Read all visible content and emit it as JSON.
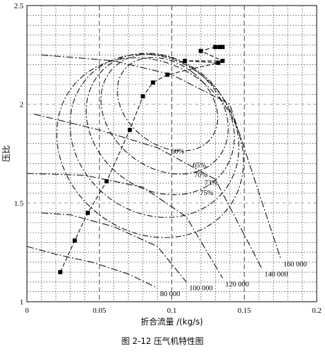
{
  "caption": "图 2-12   压气机特性图",
  "chart_data": {
    "type": "line",
    "xlabel": "折合流量 /(kg/s)",
    "ylabel": "压比",
    "xlim": [
      0,
      0.2
    ],
    "ylim": [
      1,
      2.5
    ],
    "x_ticks": [
      0,
      0.05,
      0.1,
      0.15,
      0.2
    ],
    "x_tick_labels": [
      "0",
      "0.05",
      "0.1",
      "0.15",
      "0.2"
    ],
    "y_ticks": [
      1,
      1.5,
      2,
      2.5
    ],
    "y_tick_labels": [
      "1",
      "1.5",
      "2",
      "2.5"
    ],
    "grid": true,
    "speed_lines": [
      {
        "label": "80 000",
        "x": [
          0.0,
          0.02,
          0.045,
          0.07,
          0.09
        ],
        "y": [
          1.28,
          1.24,
          1.2,
          1.14,
          1.07
        ]
      },
      {
        "label": "100 000",
        "x": [
          0.01,
          0.03,
          0.06,
          0.09,
          0.11
        ],
        "y": [
          1.45,
          1.44,
          1.38,
          1.28,
          1.1
        ]
      },
      {
        "label": "120 000",
        "x": [
          0.0,
          0.04,
          0.08,
          0.11,
          0.135
        ],
        "y": [
          1.65,
          1.64,
          1.58,
          1.43,
          1.12
        ]
      },
      {
        "label": "140 000",
        "x": [
          0.005,
          0.05,
          0.09,
          0.13,
          0.162
        ],
        "y": [
          1.95,
          1.87,
          1.78,
          1.62,
          1.17
        ]
      },
      {
        "label": "160 000",
        "x": [
          0.01,
          0.06,
          0.1,
          0.14,
          0.175
        ],
        "y": [
          2.25,
          2.22,
          2.15,
          2.0,
          1.22
        ]
      }
    ],
    "surge_points": {
      "x": [
        0.023,
        0.033,
        0.042,
        0.055,
        0.071,
        0.08,
        0.087,
        0.097,
        0.109,
        0.12,
        0.13,
        0.132,
        0.135,
        0.133,
        0.135
      ],
      "y": [
        1.15,
        1.31,
        1.45,
        1.61,
        1.87,
        2.04,
        2.11,
        2.15,
        2.22,
        2.27,
        2.29,
        2.21,
        2.22,
        2.29,
        2.29
      ]
    },
    "efficiency_islands": [
      {
        "label": "60%",
        "cx": 0.085,
        "cy": 1.78,
        "rx": 0.058,
        "ry": 0.5
      },
      {
        "label": "65%",
        "cx": 0.088,
        "cy": 1.84,
        "rx": 0.053,
        "ry": 0.45
      },
      {
        "label": "70%",
        "cx": 0.092,
        "cy": 1.9,
        "rx": 0.045,
        "ry": 0.4
      },
      {
        "label": "73%",
        "cx": 0.095,
        "cy": 1.95,
        "rx": 0.037,
        "ry": 0.35
      },
      {
        "label": "75%",
        "cx": 0.097,
        "cy": 2.0,
        "rx": 0.028,
        "ry": 0.28
      }
    ],
    "efficiency_label_points": {
      "x": [
        0.104,
        0.119,
        0.12,
        0.127,
        0.124
      ],
      "y": [
        1.75,
        1.68,
        1.63,
        1.59,
        1.54
      ]
    }
  }
}
